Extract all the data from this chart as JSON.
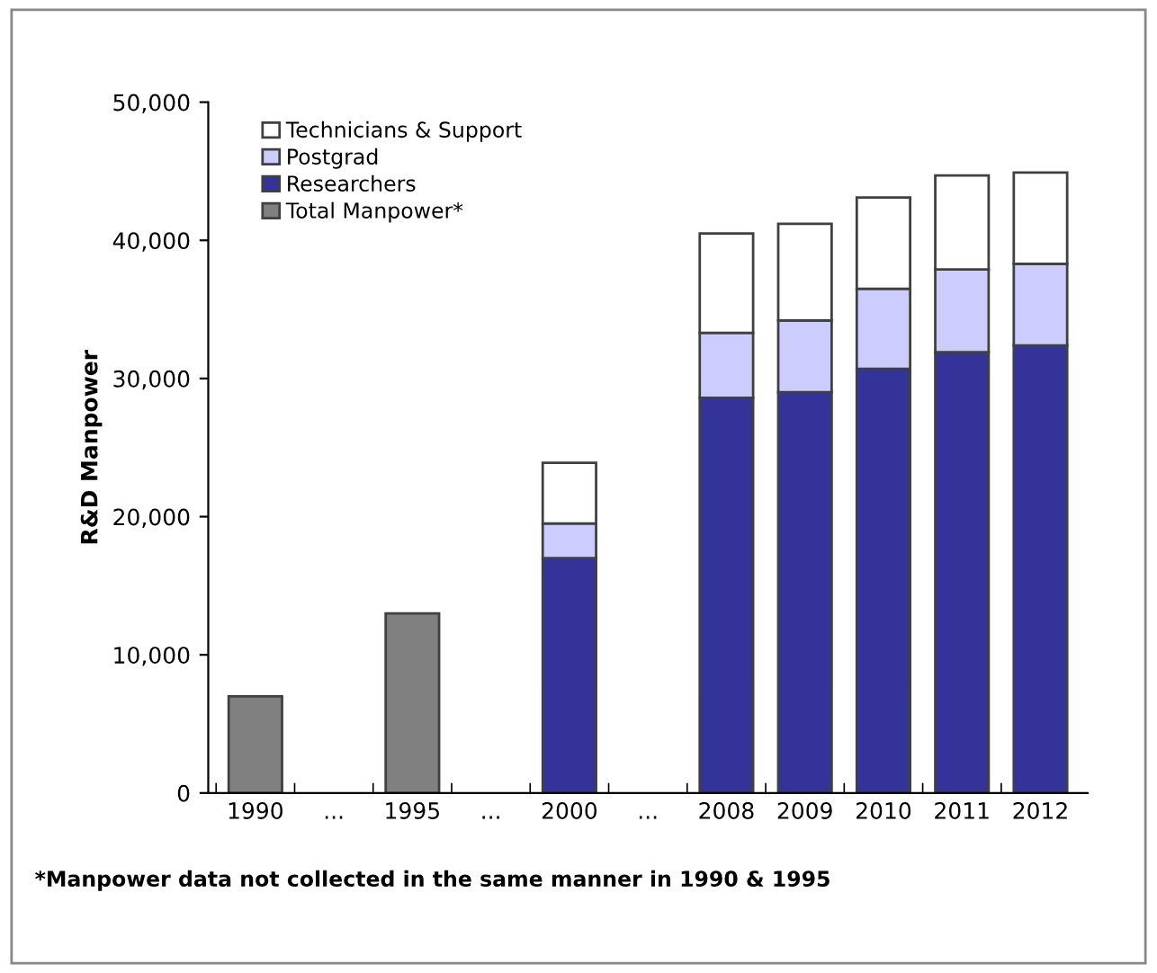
{
  "chart_data": {
    "type": "bar",
    "stacked": true,
    "ylabel": "R&D Manpower",
    "categories": [
      "1990",
      "...",
      "1995",
      "...",
      "2000",
      "...",
      "2008",
      "2009",
      "2010",
      "2011",
      "2012"
    ],
    "series": [
      {
        "name": "Total Manpower*",
        "color": "#808080",
        "values": [
          7000,
          null,
          13000,
          null,
          null,
          null,
          null,
          null,
          null,
          null,
          null
        ]
      },
      {
        "name": "Researchers",
        "color": "#333399",
        "values": [
          null,
          null,
          null,
          null,
          17000,
          null,
          28600,
          29000,
          30700,
          31900,
          32400
        ]
      },
      {
        "name": "Postgrad",
        "color": "#ccccff",
        "values": [
          null,
          null,
          null,
          null,
          2500,
          null,
          4700,
          5200,
          5800,
          6000,
          5900
        ]
      },
      {
        "name": "Technicians & Support",
        "color": "#ffffff",
        "values": [
          null,
          null,
          null,
          null,
          4400,
          null,
          7200,
          7000,
          6600,
          6800,
          6600
        ]
      }
    ],
    "ylim": [
      0,
      50000
    ],
    "yticks": [
      {
        "value": 0,
        "label": "0"
      },
      {
        "value": 10000,
        "label": "10,000"
      },
      {
        "value": 20000,
        "label": "20,000"
      },
      {
        "value": 30000,
        "label": "30,000"
      },
      {
        "value": 40000,
        "label": "40,000"
      },
      {
        "value": 50000,
        "label": "50,000"
      }
    ],
    "grid": false,
    "legend": "top left",
    "annotations": [
      "*Manpower data not collected in the same manner in 1990 & 1995"
    ]
  }
}
